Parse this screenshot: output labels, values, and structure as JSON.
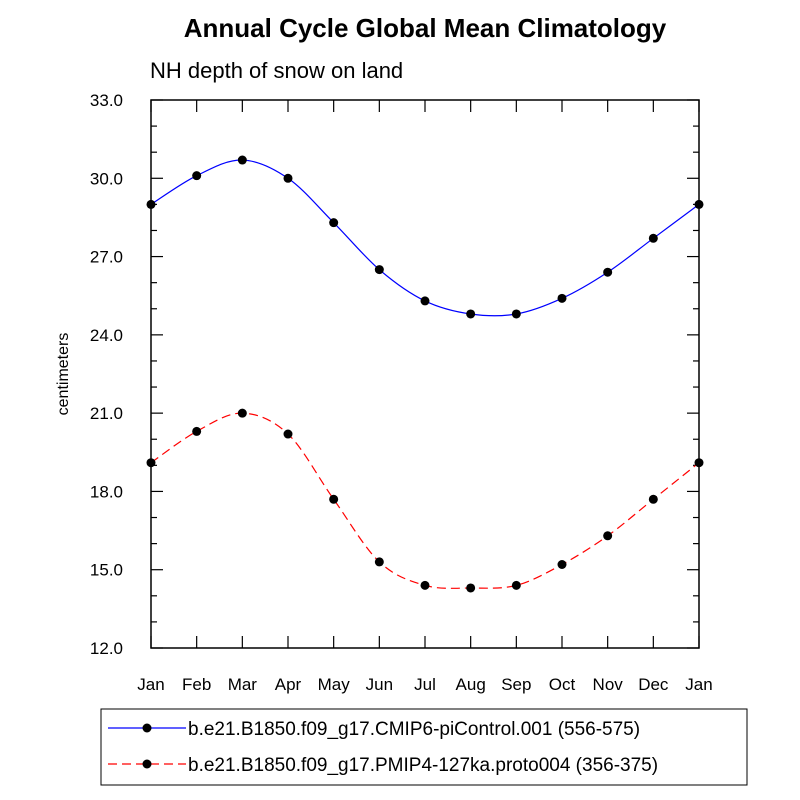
{
  "chart_data": {
    "type": "line",
    "title": "Annual Cycle Global Mean Climatology",
    "subtitle": "NH depth of snow on land",
    "xlabel": "",
    "ylabel": "centimeters",
    "categories": [
      "Jan",
      "Feb",
      "Mar",
      "Apr",
      "May",
      "Jun",
      "Jul",
      "Aug",
      "Sep",
      "Oct",
      "Nov",
      "Dec",
      "Jan"
    ],
    "ylim": [
      12.0,
      33.0
    ],
    "yticks": [
      "12.0",
      "15.0",
      "18.0",
      "21.0",
      "24.0",
      "27.0",
      "30.0",
      "33.0"
    ],
    "grid": false,
    "legend_position": "bottom",
    "series": [
      {
        "name": "b.e21.B1850.f09_g17.CMIP6-piControl.001 (556-575)",
        "color": "#0000ff",
        "line_style": "solid",
        "values": [
          29.0,
          30.1,
          30.7,
          30.0,
          28.3,
          26.5,
          25.3,
          24.8,
          24.8,
          25.4,
          26.4,
          27.7,
          29.0
        ]
      },
      {
        "name": "b.e21.B1850.f09_g17.PMIP4-127ka.proto004 (356-375)",
        "color": "#ff0000",
        "line_style": "dashed",
        "values": [
          19.1,
          20.3,
          21.0,
          20.2,
          17.7,
          15.3,
          14.4,
          14.3,
          14.4,
          15.2,
          16.3,
          17.7,
          19.1
        ]
      }
    ]
  }
}
